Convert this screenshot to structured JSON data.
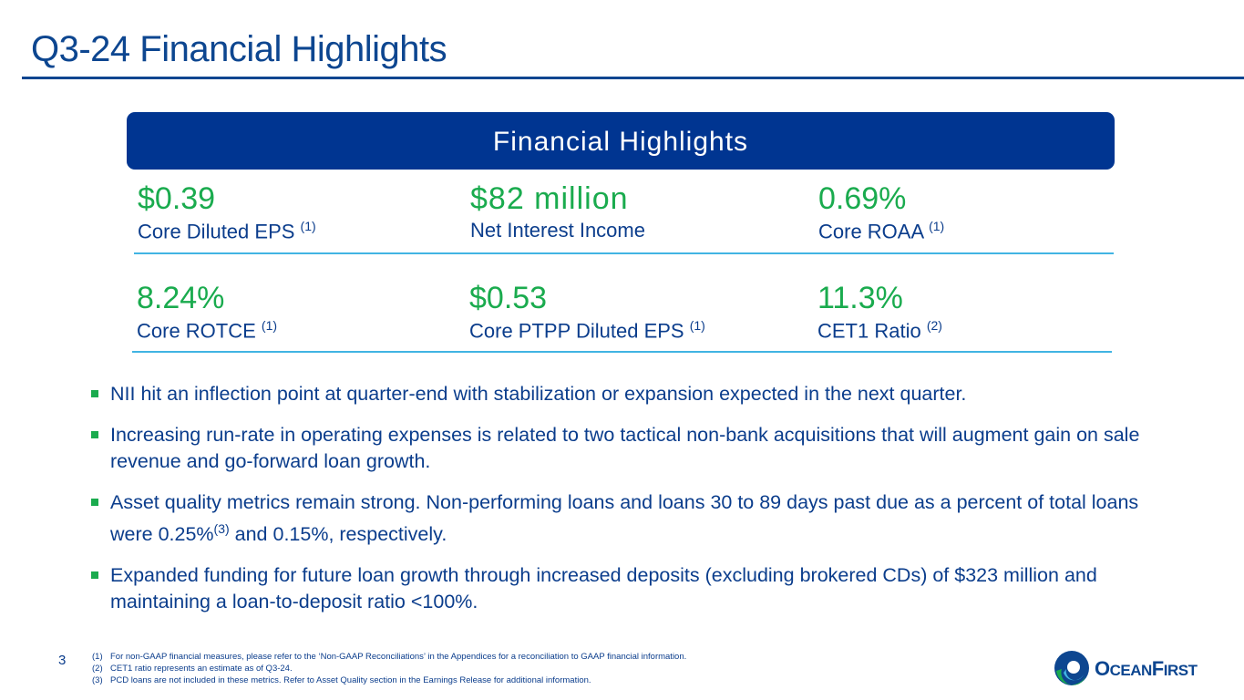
{
  "header": {
    "title": "Q3-24 Financial Highlights"
  },
  "banner": {
    "title": "Financial Highlights"
  },
  "metrics": [
    {
      "value": "$0.39",
      "label": "Core Diluted EPS",
      "note": "(1)"
    },
    {
      "value": "$82 million",
      "label": "Net Interest Income",
      "note": ""
    },
    {
      "value": "0.69%",
      "label": "Core ROAA",
      "note": "(1)"
    },
    {
      "value": "8.24%",
      "label": "Core ROTCE",
      "note": "(1)"
    },
    {
      "value": "$0.53",
      "label": "Core PTPP Diluted EPS",
      "note": "(1)"
    },
    {
      "value": "11.3%",
      "label": "CET1 Ratio",
      "note": "(2)"
    }
  ],
  "bullets": [
    {
      "text": "NII hit an inflection point at quarter-end with stabilization or expansion expected in the next quarter."
    },
    {
      "text": "Increasing run-rate in operating expenses is related to two tactical non-bank acquisitions that will augment gain on sale revenue and go-forward loan growth."
    },
    {
      "text_a": "Asset quality metrics remain strong. Non-performing loans and loans 30 to 89 days past due as a percent of total loans were 0.25%",
      "note": "(3)",
      "text_b": " and 0.15%, respectively."
    },
    {
      "text": "Expanded funding for future loan growth through increased deposits (excluding brokered CDs) of $323 million and maintaining a loan-to-deposit ratio <100%."
    }
  ],
  "footer": {
    "page_number": "3",
    "notes": [
      {
        "num": "(1)",
        "text": "For non-GAAP financial measures, please refer to the ‘Non-GAAP Reconciliations’ in the Appendices for a reconciliation to GAAP financial information."
      },
      {
        "num": "(2)",
        "text": "CET1 ratio represents an estimate as of Q3-24."
      },
      {
        "num": "(3)",
        "text": "PCD loans are not included in these metrics. Refer to Asset Quality section in the Earnings Release for additional information."
      }
    ],
    "logo": {
      "first": "O",
      "rest1": "CEAN",
      "first2": "F",
      "rest2": "IRST",
      "text": "OceanFirst"
    }
  },
  "colors": {
    "navy": "#003591",
    "green": "#1aab4e",
    "light_blue": "#41b4e3"
  }
}
